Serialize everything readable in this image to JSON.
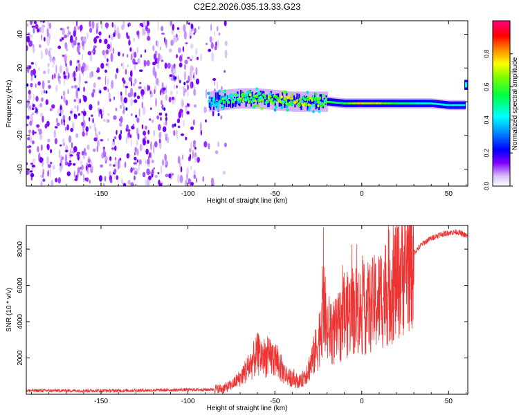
{
  "figure_title": "C2E2.2026.035.13.33.G23",
  "chart_data": [
    {
      "type": "heatmap",
      "title": "C2E2.2026.035.13.33.G23",
      "xlabel": "Height of straight line (km)",
      "ylabel": "Frequency (Hz)",
      "xlim": [
        -193,
        61
      ],
      "ylim": [
        -50,
        48
      ],
      "xticks": [
        -150,
        -100,
        -50,
        0,
        50
      ],
      "xtick_labels": [
        "-150",
        "-100",
        "-50",
        "0",
        "50"
      ],
      "yticks": [
        -40,
        -20,
        0,
        20,
        40
      ],
      "ytick_labels": [
        "-40",
        "-20",
        "0",
        "20",
        "40"
      ],
      "colorbar": {
        "label": "Normalized spectral amplitude",
        "range": [
          0,
          1
        ],
        "ticks": [
          0.0,
          0.2,
          0.4,
          0.6,
          0.8
        ],
        "tick_labels": [
          "0.0",
          "0.2",
          "0.4",
          "0.6",
          "0.8"
        ],
        "colormap": [
          "#ffffff",
          "#c8a8f8",
          "#8000ff",
          "#0000ff",
          "#00ffff",
          "#00ff00",
          "#ffff00",
          "#ff8000",
          "#ff0000",
          "#ff00ff"
        ]
      },
      "noise_region_x": [
        -193,
        -78
      ],
      "signal_trace": {
        "x": [
          -88,
          -80,
          -70,
          -60,
          -50,
          -40,
          -30,
          -20,
          -10,
          0,
          10,
          20,
          30,
          40,
          50,
          59
        ],
        "freq": [
          0,
          1,
          2,
          2,
          1,
          0,
          0,
          0,
          -1,
          -1,
          -1,
          -1,
          -1,
          -1,
          -2,
          -2
        ],
        "amplitude": [
          0.35,
          0.45,
          0.55,
          0.6,
          0.6,
          0.7,
          0.65,
          0.6,
          0.55,
          0.75,
          0.7,
          0.55,
          0.45,
          0.45,
          0.45,
          0.45
        ]
      },
      "edge_feature": {
        "x": 59,
        "freq": 10,
        "amplitude": 0.45
      }
    },
    {
      "type": "line",
      "xlabel": "Height of straight line (km)",
      "ylabel": "SNR (10 * v/v)",
      "xlim": [
        -193,
        61
      ],
      "ylim": [
        0,
        9300
      ],
      "xticks": [
        -150,
        -100,
        -50,
        0,
        50
      ],
      "xtick_labels": [
        "-150",
        "-100",
        "-50",
        "0",
        "50"
      ],
      "yticks": [
        2000,
        4000,
        6000,
        8000
      ],
      "ytick_labels": [
        "2000",
        "4000",
        "6000",
        "8000"
      ],
      "color": "#ee3333",
      "series": [
        {
          "name": "SNR",
          "x": [
            -193,
            -180,
            -160,
            -140,
            -120,
            -100,
            -90,
            -80,
            -75,
            -70,
            -65,
            -60,
            -55,
            -50,
            -45,
            -40,
            -35,
            -30,
            -25,
            -22,
            -20,
            -15,
            -10,
            -5,
            0,
            5,
            10,
            15,
            20,
            25,
            30,
            35,
            40,
            45,
            50,
            55,
            61
          ],
          "values": [
            200,
            200,
            200,
            200,
            220,
            250,
            250,
            300,
            500,
            900,
            1500,
            2200,
            2000,
            2000,
            1200,
            800,
            700,
            1500,
            2800,
            5000,
            3600,
            3400,
            4200,
            4700,
            4600,
            4800,
            5200,
            5800,
            6300,
            7200,
            7800,
            8300,
            8600,
            8800,
            8900,
            8950,
            8700
          ],
          "spike_x": [
            -22,
            -10,
            -5,
            10
          ],
          "spike_values": [
            9200,
            6700,
            6200,
            6500
          ]
        }
      ]
    }
  ]
}
